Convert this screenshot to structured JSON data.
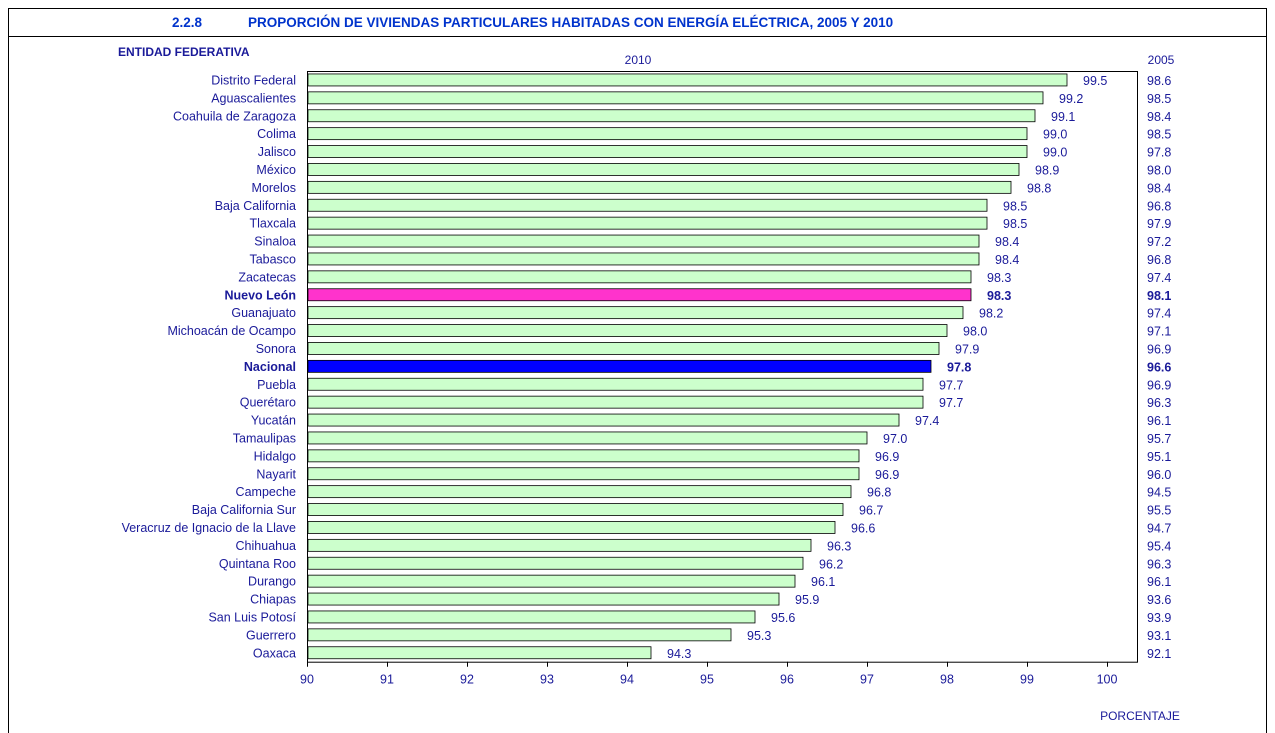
{
  "header": {
    "number": "2.2.8",
    "title": "PROPORCIÓN DE VIVIENDAS PARTICULARES HABITADAS CON ENERGÍA ELÉCTRICA, 2005 Y 2010"
  },
  "labels": {
    "entity_header": "ENTIDAD FEDERATIVA",
    "year_2010": "2010",
    "year_2005": "2005",
    "unit": "PORCENTAJE"
  },
  "colors": {
    "title": "#0033cc",
    "text": "#1a1a99",
    "bar_default": "#ccffcc",
    "bar_highlight_state": "#ff33cc",
    "bar_highlight_national": "#0000ff"
  },
  "chart_data": {
    "type": "bar",
    "orientation": "horizontal",
    "xlim": [
      90,
      100
    ],
    "x_ticks": [
      90,
      91,
      92,
      93,
      94,
      95,
      96,
      97,
      98,
      99,
      100
    ],
    "categories": [
      "Distrito Federal",
      "Aguascalientes",
      "Coahuila de Zaragoza",
      "Colima",
      "Jalisco",
      "México",
      "Morelos",
      "Baja California",
      "Tlaxcala",
      "Sinaloa",
      "Tabasco",
      "Zacatecas",
      "Nuevo León",
      "Guanajuato",
      "Michoacán de Ocampo",
      "Sonora",
      "Nacional",
      "Puebla",
      "Querétaro",
      "Yucatán",
      "Tamaulipas",
      "Hidalgo",
      "Nayarit",
      "Campeche",
      "Baja California Sur",
      "Veracruz de Ignacio de la Llave",
      "Chihuahua",
      "Quintana Roo",
      "Durango",
      "Chiapas",
      "San Luis Potosí",
      "Guerrero",
      "Oaxaca"
    ],
    "series": [
      {
        "name": "2010",
        "values": [
          99.5,
          99.2,
          99.1,
          99.0,
          99.0,
          98.9,
          98.8,
          98.5,
          98.5,
          98.4,
          98.4,
          98.3,
          98.3,
          98.2,
          98.0,
          97.9,
          97.8,
          97.7,
          97.7,
          97.4,
          97.0,
          96.9,
          96.9,
          96.8,
          96.7,
          96.6,
          96.3,
          96.2,
          96.1,
          95.9,
          95.6,
          95.3,
          94.3
        ]
      },
      {
        "name": "2005",
        "values": [
          98.6,
          98.5,
          98.4,
          98.5,
          97.8,
          98.0,
          98.4,
          96.8,
          97.9,
          97.2,
          96.8,
          97.4,
          98.1,
          97.4,
          97.1,
          96.9,
          96.6,
          96.9,
          96.3,
          96.1,
          95.7,
          95.1,
          96.0,
          94.5,
          95.5,
          94.7,
          95.4,
          96.3,
          96.1,
          93.6,
          93.9,
          93.1,
          92.1
        ]
      }
    ],
    "highlight": {
      "Nuevo León": "state",
      "Nacional": "national"
    }
  }
}
